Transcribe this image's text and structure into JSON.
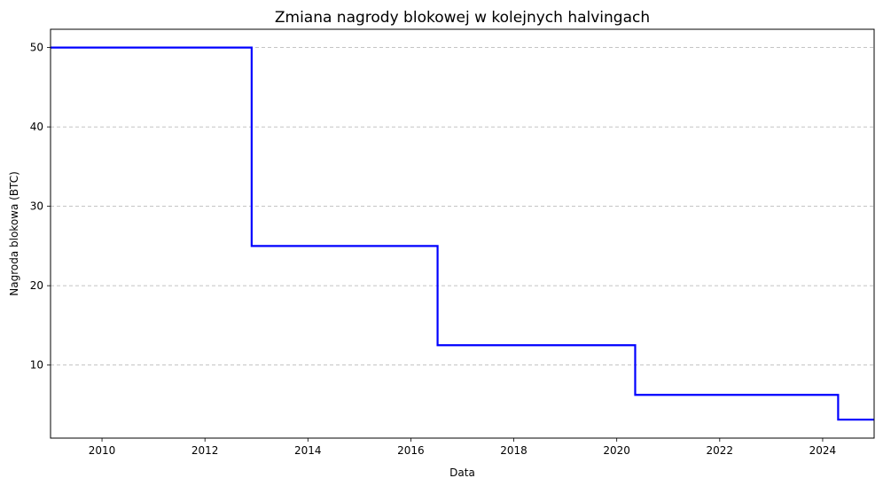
{
  "chart_data": {
    "type": "line",
    "drawstyle": "steps-post",
    "title": "Zmiana nagrody blokowej w kolejnych halvingach",
    "xlabel": "Data",
    "ylabel": "Nagroda blokowa (BTC)",
    "xlim": [
      2009.0,
      2025.0
    ],
    "ylim": [
      0.8,
      52.3
    ],
    "xticks": [
      2010,
      2012,
      2014,
      2016,
      2018,
      2020,
      2022,
      2024
    ],
    "xtick_labels": [
      "2010",
      "2012",
      "2014",
      "2016",
      "2018",
      "2020",
      "2022",
      "2024"
    ],
    "yticks": [
      10,
      20,
      30,
      40,
      50
    ],
    "ytick_labels": [
      "10",
      "20",
      "30",
      "40",
      "50"
    ],
    "grid": {
      "axis": "y",
      "style": "dashed"
    },
    "series": [
      {
        "color": "#0000ff",
        "points": [
          {
            "x": "2009-01-03",
            "y": 50
          },
          {
            "x": "2012-11-28",
            "y": 25
          },
          {
            "x": "2016-07-09",
            "y": 12.5
          },
          {
            "x": "2020-05-11",
            "y": 6.25
          },
          {
            "x": "2024-04-20",
            "y": 3.125
          },
          {
            "x": "2025-01-01",
            "y": 3.125
          }
        ]
      }
    ]
  }
}
